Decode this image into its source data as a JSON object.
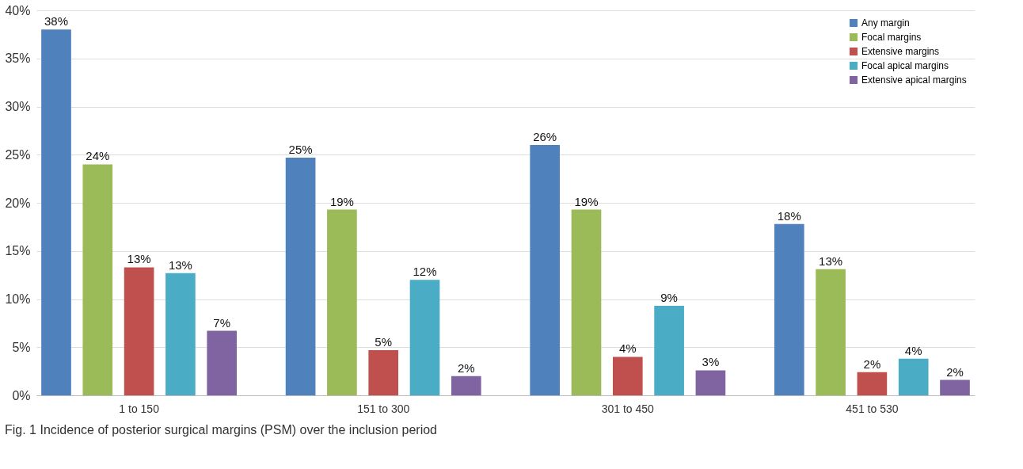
{
  "chart_data": {
    "type": "bar",
    "categories": [
      "1 to 150",
      "151 to 300",
      "301 to 450",
      "451 to 530"
    ],
    "series": [
      {
        "name": "Any margin",
        "color": "#4f81bd",
        "values": [
          38.0,
          24.7,
          26.0,
          17.8
        ],
        "value_labels": [
          "38%",
          "25%",
          "26%",
          "18%"
        ]
      },
      {
        "name": "Focal margins",
        "color": "#9bbb59",
        "values": [
          24.0,
          19.3,
          19.3,
          13.1
        ],
        "value_labels": [
          "24%",
          "19%",
          "19%",
          "13%"
        ]
      },
      {
        "name": "Extensive margins",
        "color": "#c0504d",
        "values": [
          13.3,
          4.7,
          4.0,
          2.4
        ],
        "value_labels": [
          "13%",
          "5%",
          "4%",
          "2%"
        ]
      },
      {
        "name": "Focal apical margins",
        "color": "#4bacc6",
        "values": [
          12.7,
          12.0,
          9.3,
          3.8
        ],
        "value_labels": [
          "13%",
          "12%",
          "9%",
          "4%"
        ]
      },
      {
        "name": "Extensive apical margins",
        "color": "#8064a2",
        "values": [
          6.7,
          2.0,
          2.6,
          1.6
        ],
        "value_labels": [
          "7%",
          "2%",
          "3%",
          "2%"
        ]
      }
    ],
    "ylim": [
      0,
      40
    ],
    "yticks": [
      {
        "value": 0,
        "label": "0%"
      },
      {
        "value": 5,
        "label": "5%"
      },
      {
        "value": 10,
        "label": "10%"
      },
      {
        "value": 15,
        "label": "15%"
      },
      {
        "value": 20,
        "label": "20%"
      },
      {
        "value": 25,
        "label": "25%"
      },
      {
        "value": 30,
        "label": "30%"
      },
      {
        "value": 35,
        "label": "35%"
      },
      {
        "value": 40,
        "label": "40%"
      }
    ],
    "grid": "y",
    "legend": "top right",
    "annotations": [
      "Fig. 1 Incidence of posterior surgical margins (PSM) over the inclusion period"
    ]
  }
}
